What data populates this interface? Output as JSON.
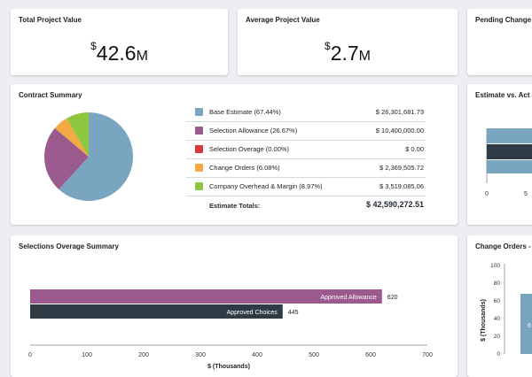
{
  "kpis": {
    "total": {
      "title": "Total Project Value",
      "currency": "$",
      "amount": "42.6",
      "unit": "M"
    },
    "average": {
      "title": "Average Project Value",
      "currency": "$",
      "amount": "2.7",
      "unit": "M"
    },
    "pending": {
      "title": "Pending Change"
    }
  },
  "contract": {
    "title": "Contract Summary",
    "rows": [
      {
        "label": "Base Estimate (67.44%)",
        "value": "$ 26,301,681.73",
        "color": "#7aa5c0"
      },
      {
        "label": "Selection Allowance (26.67%)",
        "value": "$ 10,400,000.00",
        "color": "#9b5a8d"
      },
      {
        "label": "Selection Overage (0.00%)",
        "value": "$ 0.00",
        "color": "#d63a3a"
      },
      {
        "label": "Change Orders (6.08%)",
        "value": "$ 2,369,505.72",
        "color": "#f4aa43"
      },
      {
        "label": "Company Overhead & Margin (8.97%)",
        "value": "$ 3,519,085.06",
        "color": "#8dc63f"
      }
    ],
    "totals_label": "Estimate Totals:",
    "totals_value": "$ 42,590,272.51"
  },
  "estimate_vs_actual": {
    "title": "Estimate vs. Act",
    "ticks": [
      "0",
      "5"
    ]
  },
  "change_orders": {
    "title": "Change Orders -",
    "ylabel": "$ (Thousands)",
    "ticks": [
      "100",
      "80",
      "60",
      "40",
      "20",
      "0"
    ],
    "bar_label": "6"
  },
  "chart_data": [
    {
      "type": "pie",
      "title": "Contract Summary",
      "labels": [
        "Base Estimate",
        "Selection Allowance",
        "Selection Overage",
        "Change Orders",
        "Company Overhead & Margin"
      ],
      "values": [
        26301681.73,
        10400000.0,
        0,
        2369505.72,
        3519085.06
      ],
      "colors": [
        "#7aa5c0",
        "#9b5a8d",
        "#d63a3a",
        "#f4aa43",
        "#8dc63f"
      ]
    },
    {
      "type": "bar",
      "orientation": "horizontal",
      "title": "Selections Overage Summary",
      "xlabel": "$ (Thousands)",
      "xlim": [
        0,
        700
      ],
      "xticks": [
        "0",
        "100",
        "200",
        "300",
        "400",
        "500",
        "600",
        "700"
      ],
      "series": [
        {
          "name": "Approved Allowance",
          "value": 620,
          "label": "620",
          "color": "#9b5a8d"
        },
        {
          "name": "Approved Choices",
          "value": 445,
          "label": "445",
          "color": "#2e3b45"
        }
      ]
    }
  ]
}
